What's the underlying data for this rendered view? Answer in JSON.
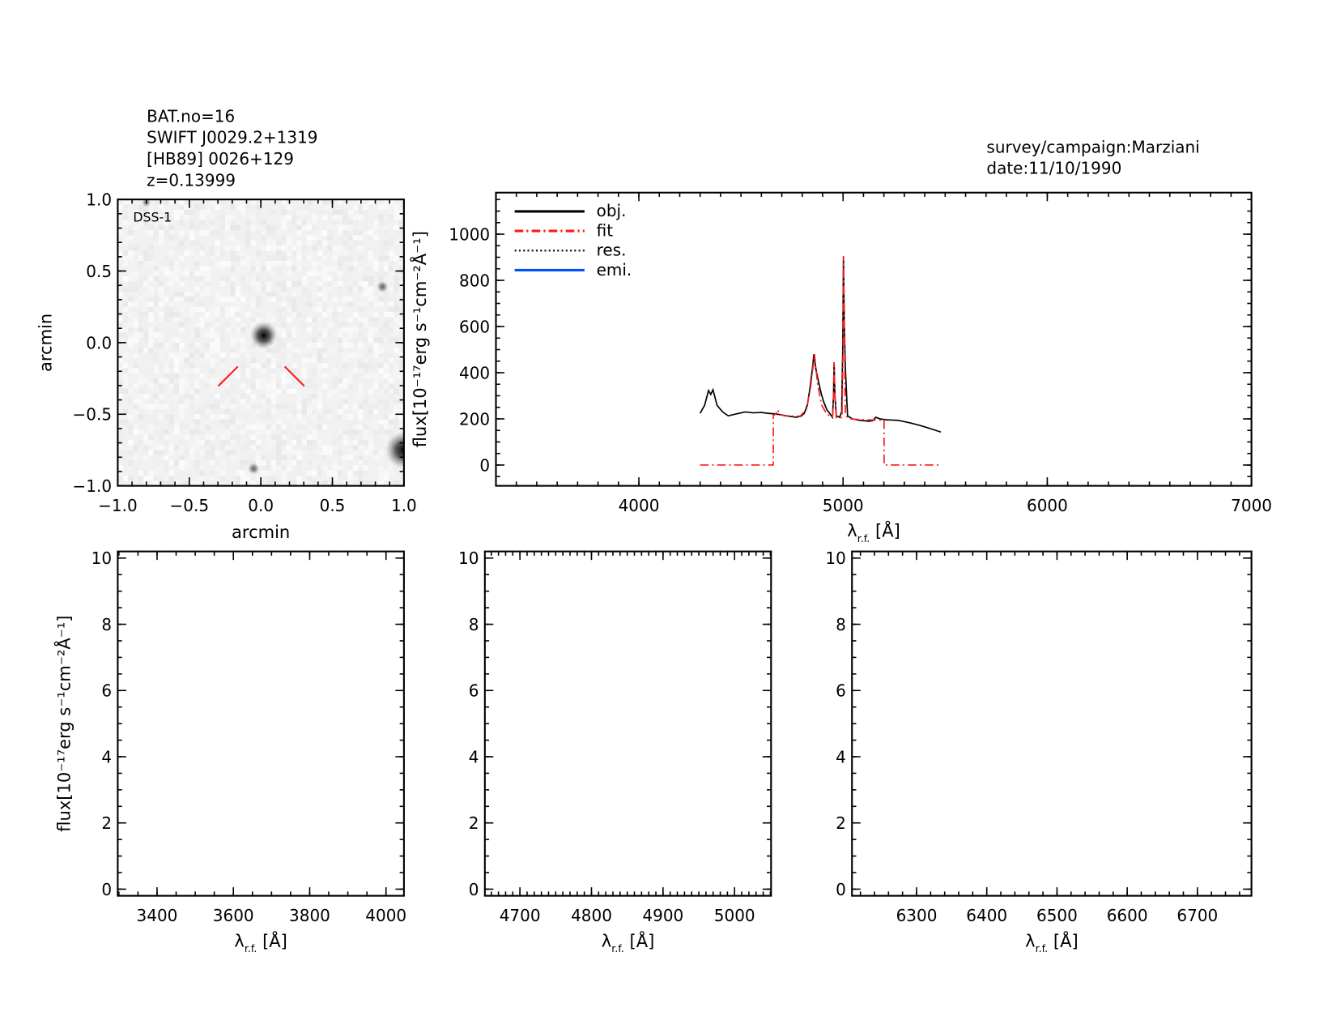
{
  "header": {
    "left": [
      "BAT.no=16",
      "SWIFT J0029.2+1319",
      "[HB89] 0026+129",
      "z=0.13999"
    ],
    "right": [
      "survey/campaign:Marziani",
      "date:11/10/1990"
    ]
  },
  "colors": {
    "obj": "#000000",
    "fit": "#ff1a1a",
    "res": "#000000",
    "emi": "#0050ff",
    "marker": "#ff1a1a"
  },
  "chart_data": [
    {
      "id": "image",
      "type": "heatmap",
      "label": "DSS-1",
      "xlabel": "arcmin",
      "ylabel": "arcmin",
      "xlim": [
        -1,
        1
      ],
      "ylim": [
        -1,
        1
      ],
      "xticks": [
        "−1.0",
        "−0.5",
        "0.0",
        "0.5",
        "1.0"
      ],
      "yticks": [
        "−1.0",
        "−0.5",
        "0.0",
        "0.5",
        "1.0"
      ],
      "sources": [
        {
          "x": 0.02,
          "y": 0.05,
          "strength": 1.0
        },
        {
          "x": 0.85,
          "y": 0.39,
          "strength": 0.35
        },
        {
          "x": -0.05,
          "y": -0.88,
          "strength": 0.35
        },
        {
          "x": 1.0,
          "y": -0.75,
          "strength": 1.4
        },
        {
          "x": -0.8,
          "y": 0.98,
          "strength": 0.25
        }
      ]
    },
    {
      "id": "spectrum",
      "type": "line",
      "xlabel_main": "λ",
      "xlabel_sub": "r.f.",
      "xlabel_unit": " [Å]",
      "ylabel": "flux[10⁻¹⁷erg s⁻¹cm⁻²Å⁻¹]",
      "xlim": [
        3300,
        7000
      ],
      "ylim": [
        -90,
        1180
      ],
      "xticks": [
        4000,
        5000,
        6000,
        7000
      ],
      "yticks": [
        0,
        200,
        400,
        600,
        800,
        1000
      ],
      "legend": [
        "obj.",
        "fit",
        "res.",
        "emi."
      ],
      "series": [
        {
          "name": "obj.",
          "x": [
            4300,
            4322,
            4341,
            4352,
            4363,
            4383,
            4410,
            4438,
            4480,
            4521,
            4560,
            4600,
            4631,
            4660,
            4686,
            4720,
            4769,
            4795,
            4810,
            4825,
            4837,
            4850,
            4857,
            4866,
            4879,
            4893,
            4906,
            4920,
            4934,
            4948,
            4953,
            4956,
            4960,
            4967,
            4983,
            4993,
            4998,
            5002,
            5006,
            5011,
            5022,
            5045,
            5071,
            5100,
            5127,
            5145,
            5160,
            5180,
            5210,
            5237,
            5265,
            5292,
            5330,
            5374,
            5420,
            5479
          ],
          "y": [
            224,
            259,
            323,
            306,
            326,
            259,
            230,
            213,
            222,
            230,
            226,
            228,
            224,
            222,
            219,
            214,
            207,
            212,
            224,
            260,
            329,
            420,
            480,
            420,
            364,
            310,
            271,
            240,
            224,
            207,
            300,
            445,
            300,
            213,
            207,
            230,
            500,
            905,
            600,
            422,
            213,
            200,
            195,
            192,
            190,
            192,
            207,
            200,
            196,
            195,
            194,
            190,
            182,
            172,
            160,
            143
          ]
        },
        {
          "name": "fit",
          "x": [
            4300,
            4658,
            4658,
            4670,
            4680,
            4690,
            4720,
            4790,
            4820,
            4840,
            4860,
            4875,
            4895,
            4920,
            4948,
            4953,
            4956,
            4960,
            4967,
            4995,
            5000,
            5002,
            5006,
            5011,
            5030,
            5100,
            5201,
            5201,
            5480
          ],
          "y": [
            0,
            0,
            215,
            220,
            240,
            218,
            212,
            212,
            240,
            330,
            480,
            350,
            260,
            220,
            208,
            300,
            445,
            300,
            205,
            205,
            500,
            905,
            600,
            215,
            200,
            196,
            194,
            0,
            0
          ]
        }
      ]
    },
    {
      "id": "panel-hgamma",
      "type": "line",
      "xlabel_main": "λ",
      "xlabel_sub": "r.f.",
      "xlabel_unit": " [Å]",
      "ylabel": "flux[10⁻¹⁷erg s⁻¹cm⁻²Å⁻¹]",
      "xlim": [
        3297,
        4047
      ],
      "ylim": [
        -0.2,
        10.2
      ],
      "xticks": [
        3400,
        3600,
        3800,
        4000
      ],
      "yticks": [
        0,
        2,
        4,
        6,
        8,
        10
      ],
      "series": []
    },
    {
      "id": "panel-hbeta",
      "type": "line",
      "xlabel_main": "λ",
      "xlabel_sub": "r.f.",
      "xlabel_unit": " [Å]",
      "xlim": [
        4651,
        5051
      ],
      "ylim": [
        -0.2,
        10.2
      ],
      "xticks": [
        4700,
        4800,
        4900,
        5000
      ],
      "yticks": [
        0,
        2,
        4,
        6,
        8,
        10
      ],
      "series": []
    },
    {
      "id": "panel-halpha",
      "type": "line",
      "xlabel_main": "λ",
      "xlabel_sub": "r.f.",
      "xlabel_unit": " [Å]",
      "xlim": [
        6208,
        6777
      ],
      "ylim": [
        -0.2,
        10.2
      ],
      "xticks": [
        6300,
        6400,
        6500,
        6600,
        6700
      ],
      "yticks": [
        0,
        2,
        4,
        6,
        8,
        10
      ],
      "series": []
    }
  ]
}
